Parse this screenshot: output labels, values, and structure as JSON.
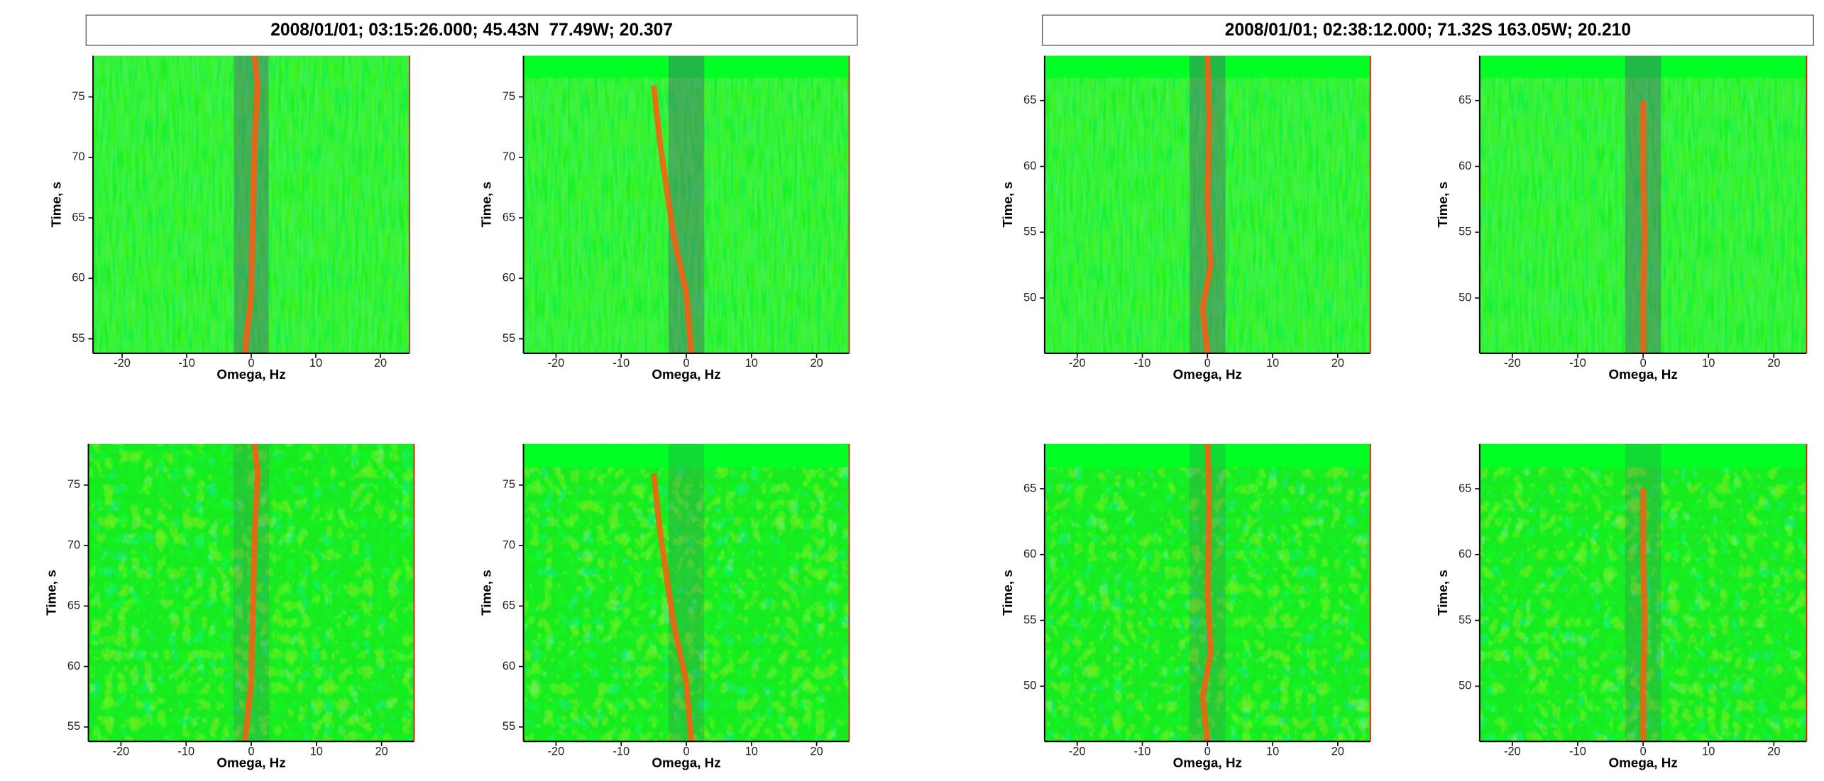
{
  "figure_titles": [
    "2008/01/01; 03:15:26.000; 45.43N  77.49W; 20.307",
    "2008/01/01; 02:38:12.000; 71.32S 163.05W; 20.210"
  ],
  "chart_data": [
    {
      "type": "heatmap",
      "xlabel": "Omega, Hz",
      "ylabel": "Time, s",
      "xlim": [
        -24.5,
        24.5
      ],
      "ylim": [
        53.8,
        78.4
      ],
      "xticks": [
        -20,
        -10,
        0,
        10,
        20
      ],
      "yticks": [
        55,
        60,
        65,
        70,
        75
      ]
    },
    {
      "type": "heatmap",
      "xlabel": "Omega, Hz",
      "ylabel": "Time, s",
      "xlim": [
        -25,
        25
      ],
      "ylim": [
        53.8,
        78.4
      ],
      "xticks": [
        -20,
        -10,
        0,
        10,
        20
      ],
      "yticks": [
        55,
        60,
        65,
        70,
        75
      ]
    },
    {
      "type": "heatmap",
      "xlabel": "Omega, Hz",
      "ylabel": "Time, s",
      "xlim": [
        -25,
        25
      ],
      "ylim": [
        45.8,
        68.4
      ],
      "xticks": [
        -20,
        -10,
        0,
        10,
        20
      ],
      "yticks": [
        50,
        55,
        60,
        65
      ]
    },
    {
      "type": "heatmap",
      "xlabel": "Omega, Hz",
      "ylabel": "Time, s",
      "xlim": [
        -25,
        25
      ],
      "ylim": [
        45.8,
        68.4
      ],
      "xticks": [
        -20,
        -10,
        0,
        10,
        20
      ],
      "yticks": [
        50,
        55,
        60,
        65
      ]
    },
    {
      "type": "heatmap",
      "xlabel": "Omega, Hz",
      "ylabel": "Time, s",
      "xlim": [
        -25,
        25
      ],
      "ylim": [
        53.8,
        78.4
      ],
      "xticks": [
        -20,
        -10,
        0,
        10,
        20
      ],
      "yticks": [
        55,
        60,
        65,
        70,
        75
      ]
    },
    {
      "type": "heatmap",
      "xlabel": "Omega, Hz",
      "ylabel": "Time, s",
      "xlim": [
        -25,
        25
      ],
      "ylim": [
        53.8,
        78.4
      ],
      "xticks": [
        -20,
        -10,
        0,
        10,
        20
      ],
      "yticks": [
        55,
        60,
        65,
        70,
        75
      ]
    },
    {
      "type": "heatmap",
      "xlabel": "Omega, Hz",
      "ylabel": "Time, s",
      "xlim": [
        -25,
        25
      ],
      "ylim": [
        45.8,
        68.4
      ],
      "xticks": [
        -20,
        -10,
        0,
        10,
        20
      ],
      "yticks": [
        50,
        55,
        60,
        65
      ]
    },
    {
      "type": "heatmap",
      "xlabel": "Omega, Hz",
      "ylabel": "Time, s",
      "xlim": [
        -25,
        25
      ],
      "ylim": [
        45.8,
        68.4
      ],
      "xticks": [
        -20,
        -10,
        0,
        10,
        20
      ],
      "yticks": [
        50,
        55,
        60,
        65
      ]
    }
  ]
}
